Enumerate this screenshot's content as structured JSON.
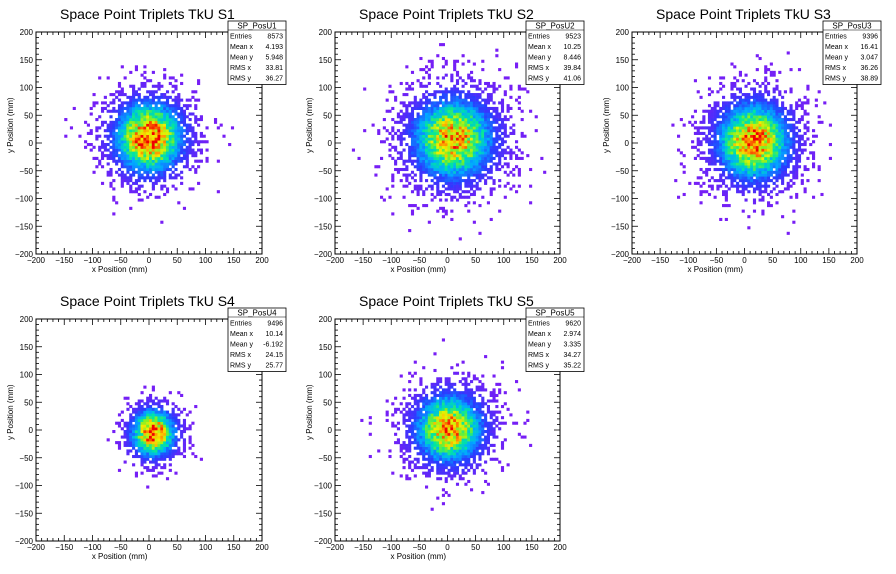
{
  "chart_data": [
    {
      "type": "heatmap",
      "title": "Space Point Triplets TkU S1",
      "xlabel": "x Position (mm)",
      "ylabel": "y Position (mm)",
      "xlim": [
        -200,
        200
      ],
      "ylim": [
        -200,
        200
      ],
      "xticks": [
        "−200",
        "−150",
        "−100",
        "−50",
        "0",
        "50",
        "100",
        "150",
        "200"
      ],
      "yticks": [
        "−200",
        "−150",
        "−100",
        "−50",
        "0",
        "50",
        "100",
        "150",
        "200"
      ],
      "distribution": {
        "center": [
          0,
          10
        ],
        "sigma": [
          34,
          36
        ],
        "peak": 1.0
      },
      "stats": {
        "name": "SP_PosU1",
        "rows": [
          [
            "Entries",
            "8573"
          ],
          [
            "Mean x",
            "4.193"
          ],
          [
            "Mean y",
            "5.948"
          ],
          [
            "RMS x",
            "33.81"
          ],
          [
            "RMS y",
            "36.27"
          ]
        ]
      }
    },
    {
      "type": "heatmap",
      "title": "Space Point Triplets TkU S2",
      "xlabel": "x Position (mm)",
      "ylabel": "y Position (mm)",
      "xlim": [
        -200,
        200
      ],
      "ylim": [
        -200,
        200
      ],
      "xticks": [
        "−200",
        "−150",
        "−100",
        "−50",
        "0",
        "50",
        "100",
        "150",
        "200"
      ],
      "yticks": [
        "−200",
        "−150",
        "−100",
        "−50",
        "0",
        "50",
        "100",
        "150",
        "200"
      ],
      "distribution": {
        "center": [
          10,
          8
        ],
        "sigma": [
          40,
          41
        ],
        "peak": 0.9
      },
      "stats": {
        "name": "SP_PosU2",
        "rows": [
          [
            "Entries",
            "9523"
          ],
          [
            "Mean x",
            "10.25"
          ],
          [
            "Mean y",
            "8.446"
          ],
          [
            "RMS x",
            "39.84"
          ],
          [
            "RMS y",
            "41.06"
          ]
        ]
      }
    },
    {
      "type": "heatmap",
      "title": "Space Point Triplets TkU S3",
      "xlabel": "x Position (mm)",
      "ylabel": "y Position (mm)",
      "xlim": [
        -200,
        200
      ],
      "ylim": [
        -200,
        200
      ],
      "xticks": [
        "−200",
        "−150",
        "−100",
        "−50",
        "0",
        "50",
        "100",
        "150",
        "200"
      ],
      "yticks": [
        "−200",
        "−150",
        "−100",
        "−50",
        "0",
        "50",
        "100",
        "150",
        "200"
      ],
      "distribution": {
        "center": [
          16,
          3
        ],
        "sigma": [
          36,
          39
        ],
        "peak": 0.95
      },
      "stats": {
        "name": "SP_PosU3",
        "rows": [
          [
            "Entries",
            "9396"
          ],
          [
            "Mean x",
            "16.41"
          ],
          [
            "Mean y",
            "3.047"
          ],
          [
            "RMS x",
            "36.26"
          ],
          [
            "RMS y",
            "38.89"
          ]
        ]
      }
    },
    {
      "type": "heatmap",
      "title": "Space Point Triplets TkU S4",
      "xlabel": "x Position (mm)",
      "ylabel": "y Position (mm)",
      "xlim": [
        -200,
        200
      ],
      "ylim": [
        -200,
        200
      ],
      "xticks": [
        "−200",
        "−150",
        "−100",
        "−50",
        "0",
        "50",
        "100",
        "150",
        "200"
      ],
      "yticks": [
        "−200",
        "−150",
        "−100",
        "−50",
        "0",
        "50",
        "100",
        "150",
        "200"
      ],
      "distribution": {
        "center": [
          8,
          -5
        ],
        "sigma": [
          22,
          24
        ],
        "peak": 1.0
      },
      "stats": {
        "name": "SP_PosU4",
        "rows": [
          [
            "Entries",
            "9496"
          ],
          [
            "Mean x",
            "10.14"
          ],
          [
            "Mean y",
            "-6.192"
          ],
          [
            "RMS x",
            "24.15"
          ],
          [
            "RMS y",
            "25.77"
          ]
        ]
      }
    },
    {
      "type": "heatmap",
      "title": "Space Point Triplets TkU S5",
      "xlabel": "x Position (mm)",
      "ylabel": "y Position (mm)",
      "xlim": [
        -200,
        200
      ],
      "ylim": [
        -200,
        200
      ],
      "xticks": [
        "−200",
        "−150",
        "−100",
        "−50",
        "0",
        "50",
        "100",
        "150",
        "200"
      ],
      "yticks": [
        "−200",
        "−150",
        "−100",
        "−50",
        "0",
        "50",
        "100",
        "150",
        "200"
      ],
      "distribution": {
        "center": [
          3,
          3
        ],
        "sigma": [
          34,
          35
        ],
        "peak": 0.9
      },
      "stats": {
        "name": "SP_PosU5",
        "rows": [
          [
            "Entries",
            "9620"
          ],
          [
            "Mean x",
            "2.974"
          ],
          [
            "Mean y",
            "3.335"
          ],
          [
            "RMS x",
            "34.27"
          ],
          [
            "RMS y",
            "35.22"
          ]
        ]
      }
    }
  ]
}
